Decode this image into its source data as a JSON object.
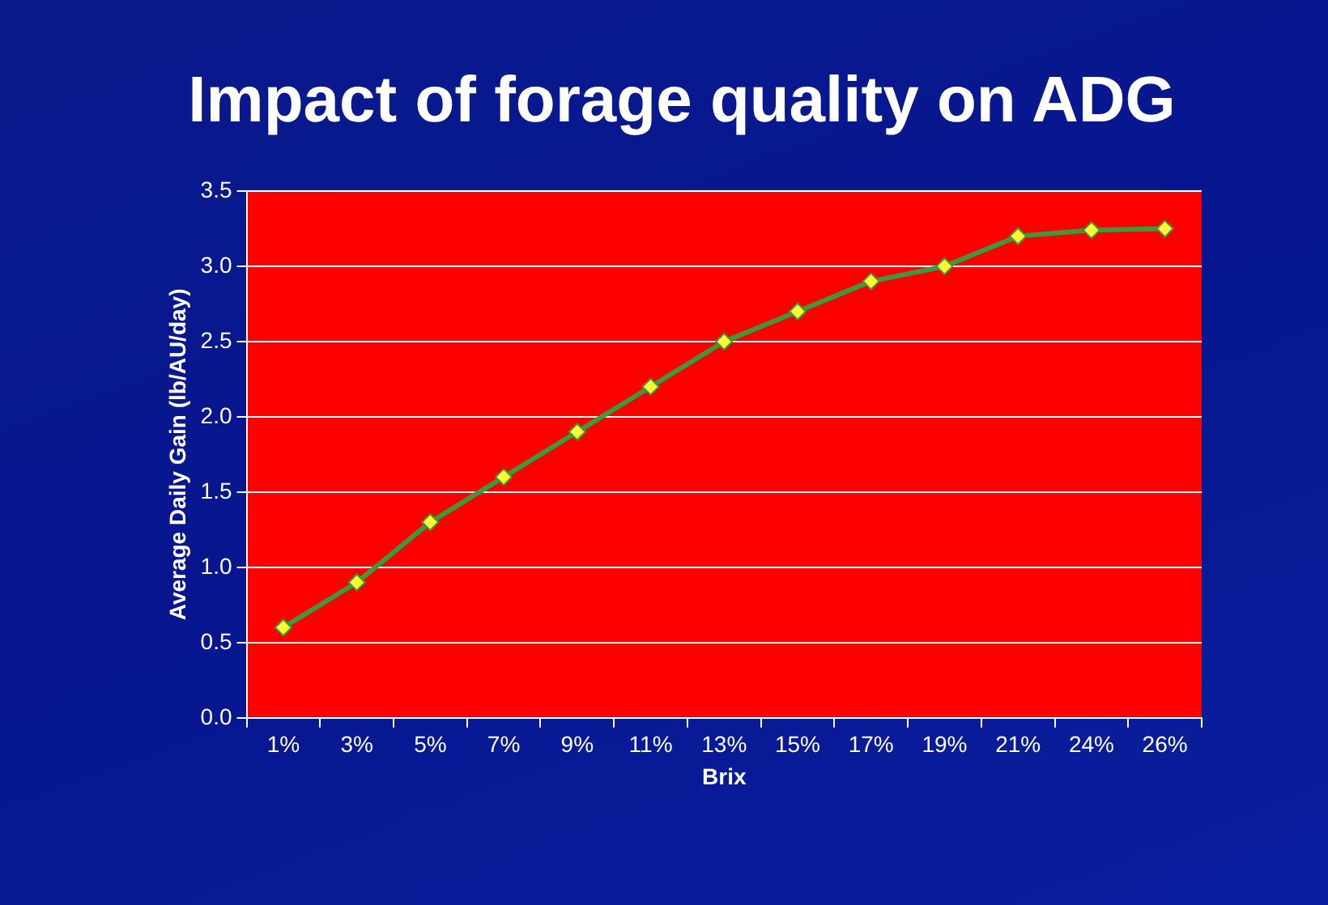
{
  "chart_data": {
    "type": "line",
    "title": "Impact of forage quality on ADG",
    "xlabel": "Brix",
    "ylabel": "Average Daily Gain (lb/AU/day)",
    "categories": [
      "1%",
      "3%",
      "5%",
      "7%",
      "9%",
      "11%",
      "13%",
      "15%",
      "17%",
      "19%",
      "21%",
      "24%",
      "26%"
    ],
    "series": [
      {
        "color": "#3c9a3c",
        "values": [
          0.6,
          0.9,
          1.3,
          1.6,
          1.9,
          2.2,
          2.5,
          2.7,
          2.9,
          3.0,
          3.2,
          3.24,
          3.25
        ]
      }
    ],
    "ylim": [
      0,
      3.5
    ],
    "yticks": [
      {
        "value": 0,
        "label": "0.0"
      },
      0.5,
      {
        "value": 1,
        "label": "1.0"
      },
      1.5,
      {
        "value": 2,
        "label": "2.0"
      },
      2.5,
      {
        "value": 3,
        "label": "3.0"
      },
      3.5
    ],
    "grid": "y",
    "legend": false,
    "marker": "diamond",
    "line_style": "solid"
  }
}
